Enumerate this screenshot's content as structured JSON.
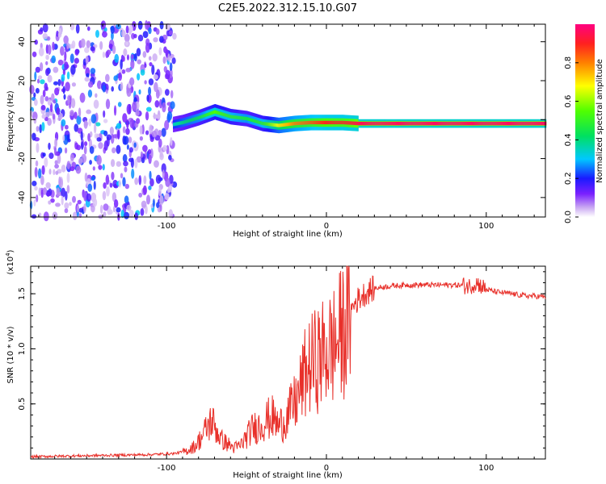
{
  "figure_title": "C2E5.2022.312.15.10.G07",
  "chart_data": [
    {
      "type": "heatmap",
      "title": "",
      "xlabel": "Height of straight line (km)",
      "ylabel": "Frequency (Hz)",
      "xlim": [
        -185,
        137
      ],
      "ylim": [
        -50,
        49
      ],
      "x_ticks": [
        -100,
        0,
        100
      ],
      "x_tick_labels": [
        "-100",
        "0",
        "100"
      ],
      "y_ticks": [
        -40,
        -20,
        0,
        20,
        40
      ],
      "y_tick_labels": [
        "-40",
        "-20",
        "0",
        "20",
        "40"
      ],
      "description_values": {
        "noise_region_x": [
          -185,
          -95
        ],
        "noise_amplitude": [
          0.0,
          0.35
        ],
        "signal_trace": [
          {
            "x": -96,
            "freq": -2.5,
            "amp": 0.35
          },
          {
            "x": -90,
            "freq": -1.5,
            "amp": 0.4
          },
          {
            "x": -80,
            "freq": 1.0,
            "amp": 0.45
          },
          {
            "x": -70,
            "freq": 4.0,
            "amp": 0.55
          },
          {
            "x": -60,
            "freq": 1.5,
            "amp": 0.5
          },
          {
            "x": -50,
            "freq": 0.5,
            "amp": 0.45
          },
          {
            "x": -40,
            "freq": -2.0,
            "amp": 0.5
          },
          {
            "x": -30,
            "freq": -3.0,
            "amp": 0.7
          },
          {
            "x": -20,
            "freq": -2.0,
            "amp": 0.8
          },
          {
            "x": -10,
            "freq": -1.5,
            "amp": 0.85
          },
          {
            "x": 0,
            "freq": -1.5,
            "amp": 0.9
          },
          {
            "x": 10,
            "freq": -1.5,
            "amp": 0.9
          },
          {
            "x": 20,
            "freq": -2.0,
            "amp": 0.95
          },
          {
            "x": 50,
            "freq": -2.0,
            "amp": 0.97
          },
          {
            "x": 100,
            "freq": -2.0,
            "amp": 0.97
          },
          {
            "x": 137,
            "freq": -2.0,
            "amp": 0.97
          }
        ]
      }
    },
    {
      "type": "colorbar",
      "label": "Normalized spectral amplitude",
      "range": [
        0,
        1
      ],
      "ticks": [
        0.0,
        0.2,
        0.4,
        0.6,
        0.8
      ],
      "tick_labels": [
        "0.0",
        "0.2",
        "0.4",
        "0.6",
        "0.8"
      ]
    },
    {
      "type": "line",
      "title": "",
      "xlabel": "Height of straight line (km)",
      "ylabel": "SNR (10 * v/v)",
      "y_scale_label": "(x10",
      "y_scale_exp": "4",
      "y_scale_close": ")",
      "xlim": [
        -185,
        137
      ],
      "ylim": [
        0,
        1.75
      ],
      "x_ticks": [
        -100,
        0,
        100
      ],
      "x_tick_labels": [
        "-100",
        "0",
        "100"
      ],
      "y_ticks": [
        0.5,
        1.0,
        1.5
      ],
      "y_tick_labels": [
        "0.5",
        "1.0",
        "1.5"
      ],
      "series": [
        {
          "name": "SNR",
          "color": "#e8302a",
          "x": [
            -185,
            -170,
            -150,
            -130,
            -110,
            -95,
            -88,
            -82,
            -78,
            -74,
            -72,
            -70,
            -66,
            -62,
            -58,
            -54,
            -50,
            -46,
            -42,
            -38,
            -34,
            -30,
            -26,
            -22,
            -18,
            -14,
            -10,
            -6,
            -2,
            2,
            6,
            10,
            14,
            18,
            22,
            26,
            30,
            40,
            50,
            60,
            70,
            80,
            90,
            94,
            98,
            100,
            105,
            110,
            115,
            120,
            125,
            130,
            137
          ],
          "values": [
            0.02,
            0.025,
            0.03,
            0.035,
            0.04,
            0.05,
            0.07,
            0.12,
            0.2,
            0.3,
            0.35,
            0.3,
            0.18,
            0.14,
            0.1,
            0.12,
            0.2,
            0.28,
            0.3,
            0.35,
            0.38,
            0.3,
            0.35,
            0.45,
            0.55,
            0.75,
            0.85,
            0.9,
            0.95,
            1.0,
            1.05,
            1.15,
            1.3,
            1.42,
            1.48,
            1.52,
            1.55,
            1.57,
            1.58,
            1.58,
            1.58,
            1.58,
            1.57,
            1.6,
            1.56,
            1.54,
            1.52,
            1.51,
            1.5,
            1.49,
            1.48,
            1.48,
            1.47
          ]
        }
      ]
    }
  ],
  "colors": {
    "line": "#e8302a",
    "trace_core": "#e0004a",
    "noise_dark": "#6a00ff",
    "noise_light": "#c9a8f2"
  }
}
